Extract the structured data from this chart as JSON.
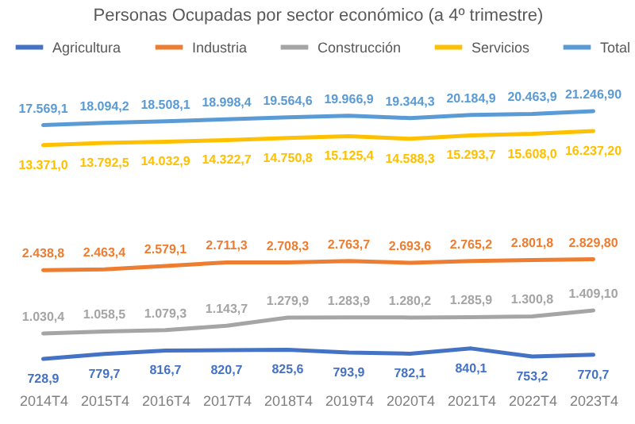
{
  "chart_data": {
    "type": "line",
    "title": "Personas Ocupadas por sector económico (a 4º trimestre)",
    "categories": [
      "2014T4",
      "2015T4",
      "2016T4",
      "2017T4",
      "2018T4",
      "2019T4",
      "2020T4",
      "2021T4",
      "2022T4",
      "2023T4"
    ],
    "log": "y",
    "tick_labels": "x",
    "legend": "top",
    "marker": "none",
    "line_style": "solid",
    "series": [
      {
        "name": "Agricultura",
        "color": "#4472c4",
        "values": [
          728.9,
          779.7,
          816.7,
          820.7,
          825.6,
          793.9,
          782.1,
          840.1,
          753.2,
          770.7
        ],
        "value_labels": [
          "728,9",
          "779,7",
          "816,7",
          "820,7",
          "825,6",
          "793,9",
          "782,1",
          "840,1",
          "753,2",
          "770,7"
        ]
      },
      {
        "name": "Industria",
        "color": "#ed7d31",
        "values": [
          2438.8,
          2463.4,
          2579.1,
          2711.3,
          2708.3,
          2763.7,
          2693.6,
          2765.2,
          2801.8,
          2829.8
        ],
        "value_labels": [
          "2.438,8",
          "2.463,4",
          "2.579,1",
          "2.711,3",
          "2.708,3",
          "2.763,7",
          "2.693,6",
          "2.765,2",
          "2.801,8",
          "2.829,80"
        ]
      },
      {
        "name": "Construcción",
        "color": "#a5a5a5",
        "values": [
          1030.4,
          1058.5,
          1079.3,
          1143.7,
          1279.9,
          1283.9,
          1280.2,
          1285.9,
          1300.8,
          1409.1
        ],
        "value_labels": [
          "1.030,4",
          "1.058,5",
          "1.079,3",
          "1.143,7",
          "1.279,9",
          "1.283,9",
          "1.280,2",
          "1.285,9",
          "1.300,8",
          "1.409,10"
        ]
      },
      {
        "name": "Servicios",
        "color": "#ffc000",
        "values": [
          13371.0,
          13792.5,
          14032.9,
          14322.7,
          14750.8,
          15125.4,
          14588.3,
          15293.7,
          15608.0,
          16237.2
        ],
        "value_labels": [
          "13.371,0",
          "13.792,5",
          "14.032,9",
          "14.322,7",
          "14.750,8",
          "15.125,4",
          "14.588,3",
          "15.293,7",
          "15.608,0",
          "16.237,20"
        ]
      },
      {
        "name": "Total",
        "color": "#5b9bd5",
        "values": [
          17569.1,
          18094.2,
          18508.1,
          18998.4,
          19564.6,
          19966.9,
          19344.3,
          20184.9,
          20463.9,
          21246.9
        ],
        "value_labels": [
          "17.569,1",
          "18.094,2",
          "18.508,1",
          "18.998,4",
          "19.564,6",
          "19.966,9",
          "19.344,3",
          "20.184,9",
          "20.463,9",
          "21.246,90"
        ]
      }
    ]
  }
}
